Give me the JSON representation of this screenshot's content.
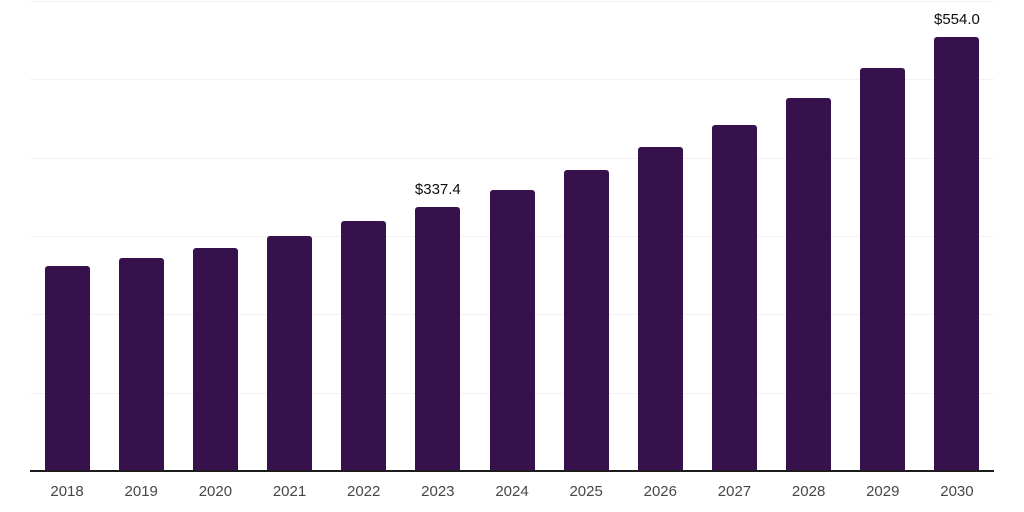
{
  "chart_data": {
    "type": "bar",
    "title": "",
    "xlabel": "",
    "ylabel": "",
    "categories": [
      "2018",
      "2019",
      "2020",
      "2021",
      "2022",
      "2023",
      "2024",
      "2025",
      "2026",
      "2027",
      "2028",
      "2029",
      "2030"
    ],
    "values": [
      262,
      272,
      285,
      300,
      319,
      337.4,
      359,
      384,
      413,
      442,
      476,
      514,
      554
    ],
    "data_labels": [
      "",
      "",
      "",
      "",
      "",
      "$337.4",
      "",
      "",
      "",
      "",
      "",
      "",
      "$554.0"
    ],
    "ylim": [
      0,
      600
    ],
    "gridline_step": 100,
    "grid": "horizontal-only",
    "legend": "none",
    "colors": {
      "bar": "#36114B",
      "axis_line": "#1c1c1c",
      "gridline": "#f2f2f2",
      "tick_label": "#474747",
      "data_label": "#0d0d0d",
      "background": "#ffffff"
    }
  }
}
